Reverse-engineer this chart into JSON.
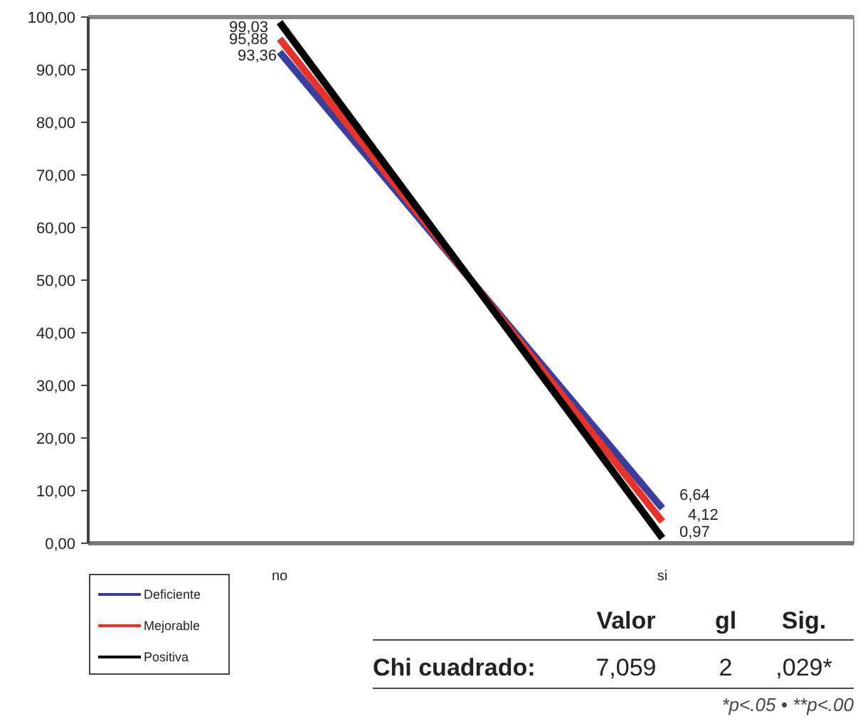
{
  "chart_data": {
    "type": "line",
    "categories": [
      "no",
      "si"
    ],
    "series": [
      {
        "name": "Deficiente",
        "color": "#3a3f9e",
        "values": [
          93.36,
          6.64
        ],
        "value_labels": [
          "93,36",
          "6,64"
        ]
      },
      {
        "name": "Mejorable",
        "color": "#e8332a",
        "values": [
          95.88,
          4.12
        ],
        "value_labels": [
          "95,88",
          "4,12"
        ]
      },
      {
        "name": "Positiva",
        "color": "#000000",
        "values": [
          99.03,
          0.97
        ],
        "value_labels": [
          "99,03",
          "0,97"
        ]
      }
    ],
    "ylim": [
      0,
      100
    ],
    "yticks": [
      {
        "value": 0,
        "label": "0,00"
      },
      {
        "value": 10,
        "label": "10,00"
      },
      {
        "value": 20,
        "label": "20,00"
      },
      {
        "value": 30,
        "label": "30,00"
      },
      {
        "value": 40,
        "label": "40,00"
      },
      {
        "value": 50,
        "label": "50,00"
      },
      {
        "value": 60,
        "label": "60,00"
      },
      {
        "value": 70,
        "label": "70,00"
      },
      {
        "value": 80,
        "label": "80,00"
      },
      {
        "value": 90,
        "label": "90,00"
      },
      {
        "value": 100,
        "label": "100,00"
      }
    ],
    "grid": false,
    "legend": "bottom left",
    "marker": "none",
    "line_style": "solid",
    "annotations": [
      "Valor",
      "gl",
      "Sig.",
      "Chi cuadrado:",
      "7,059",
      "2",
      ",029*",
      "*p<.05 • **p<.00"
    ]
  }
}
